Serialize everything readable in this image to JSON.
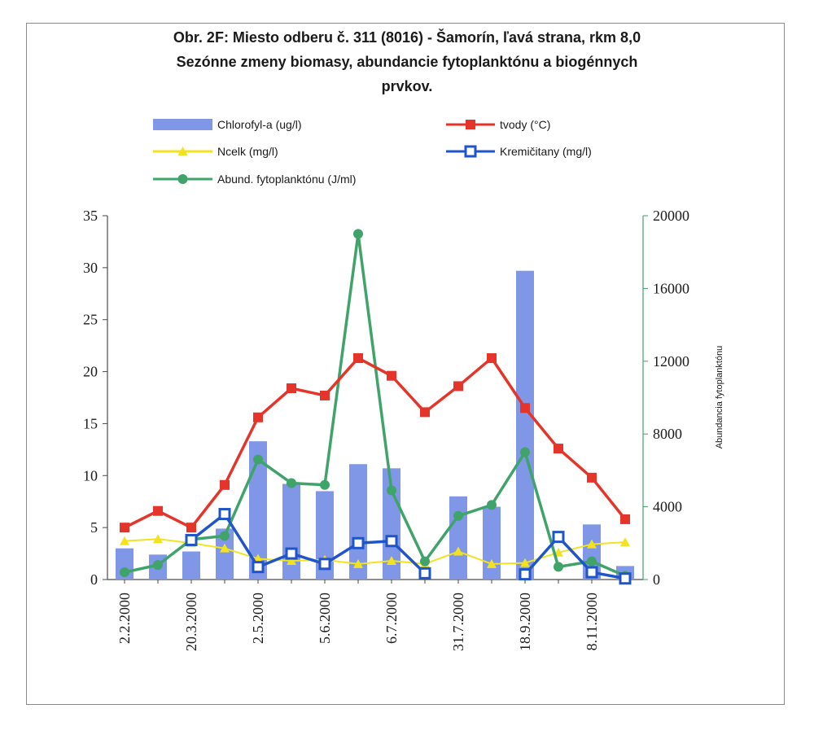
{
  "chart_data": {
    "type": "bar",
    "title_lines": [
      "Obr. 2F:  Miesto odberu č. 311 (8016) - Šamorín, ľavá strana, rkm 8,0",
      "Sezónne zmeny biomasy, abundancie fytoplanktónu a biogénnych",
      "prvkov."
    ],
    "x_labels": [
      "2.2.2000",
      "",
      "20.3.2000",
      "",
      "2.5.2000",
      "",
      "5.6.2000",
      "",
      "6.7.2000",
      "",
      "31.7.2000",
      "",
      "18.9.2000",
      "",
      "8.11.2000",
      ""
    ],
    "ylabel_right": "Abundancia fytoplanktónu",
    "ylim_left": [
      0,
      35
    ],
    "yticks_left": [
      0,
      5,
      10,
      15,
      20,
      25,
      30,
      35
    ],
    "ylim_right": [
      0,
      20000
    ],
    "yticks_right": [
      0,
      4000,
      8000,
      12000,
      16000,
      20000
    ],
    "series": [
      {
        "name": "Chlorofyl-a (ug/l)",
        "kind": "bar",
        "axis": "left",
        "color": "#7f97e6",
        "values": [
          3.0,
          2.4,
          2.7,
          4.9,
          13.3,
          9.2,
          8.5,
          11.1,
          10.7,
          null,
          8.0,
          7.0,
          29.7,
          null,
          5.3,
          1.3
        ]
      },
      {
        "name": "tvody (°C)",
        "kind": "line",
        "axis": "left",
        "color": "#e5342a",
        "marker": "square",
        "values": [
          5.0,
          6.6,
          5.0,
          9.1,
          15.6,
          18.4,
          17.7,
          21.3,
          19.6,
          16.1,
          18.6,
          21.3,
          16.5,
          12.6,
          9.8,
          5.8
        ]
      },
      {
        "name": "Ncelk (mg/l)",
        "kind": "line",
        "axis": "left",
        "color": "#f2e21f",
        "marker": "triangle",
        "values": [
          3.7,
          3.9,
          3.5,
          3.0,
          2.0,
          1.8,
          1.9,
          1.5,
          1.8,
          1.5,
          2.7,
          1.5,
          1.6,
          2.6,
          3.4,
          3.6
        ]
      },
      {
        "name": "Kremičitany (mg/l)",
        "kind": "line",
        "axis": "left",
        "color": "#1f55c8",
        "marker": "open-square",
        "values": [
          null,
          null,
          3.8,
          6.3,
          1.2,
          2.5,
          1.5,
          3.5,
          3.7,
          0.6,
          null,
          null,
          0.5,
          4.1,
          0.7,
          0.1
        ]
      },
      {
        "name": "Abund. fytoplanktónu (J/ml)",
        "kind": "line",
        "axis": "right",
        "color": "#3fa36a",
        "marker": "circle",
        "values": [
          400,
          800,
          2200,
          2400,
          6600,
          5300,
          5200,
          19000,
          4900,
          1000,
          3500,
          4100,
          7000,
          700,
          1000,
          200
        ]
      }
    ],
    "legend_rows": [
      [
        0,
        1
      ],
      [
        2,
        3
      ],
      [
        4
      ]
    ],
    "grid": false
  }
}
